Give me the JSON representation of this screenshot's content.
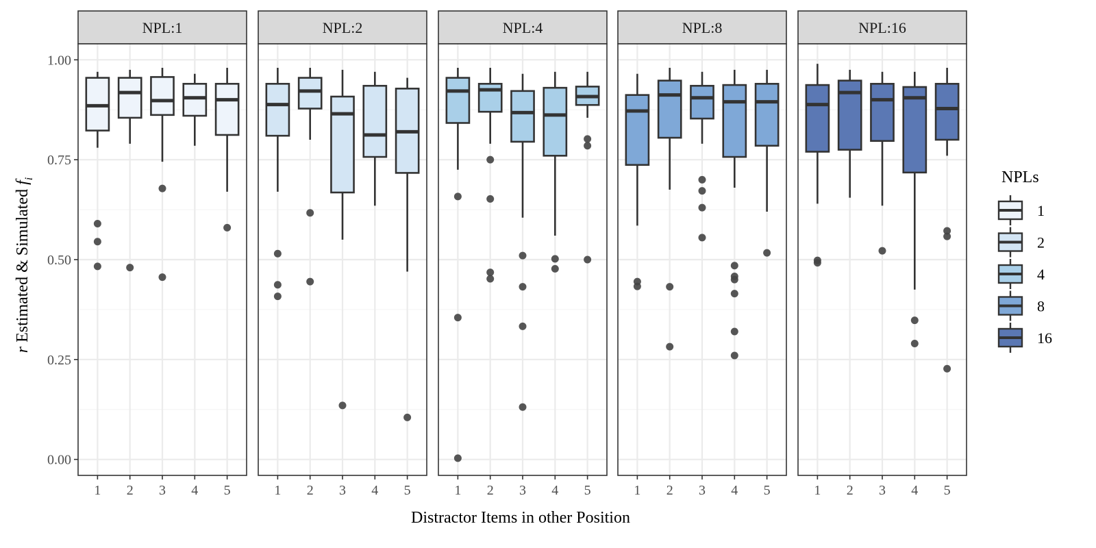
{
  "chart_data": {
    "type": "boxplot",
    "facet_variable": "NPL",
    "facets": [
      {
        "label": "NPL:1",
        "npl": "1",
        "color": "#eef4fb",
        "boxes": [
          {
            "x": "1",
            "lower_whisker": 0.78,
            "q1": 0.823,
            "median": 0.885,
            "q3": 0.955,
            "upper_whisker": 0.97,
            "outliers": [
              0.59,
              0.545,
              0.483
            ]
          },
          {
            "x": "2",
            "lower_whisker": 0.79,
            "q1": 0.855,
            "median": 0.918,
            "q3": 0.955,
            "upper_whisker": 0.975,
            "outliers": [
              0.48
            ]
          },
          {
            "x": "3",
            "lower_whisker": 0.745,
            "q1": 0.862,
            "median": 0.898,
            "q3": 0.957,
            "upper_whisker": 0.98,
            "outliers": [
              0.678,
              0.456
            ]
          },
          {
            "x": "4",
            "lower_whisker": 0.785,
            "q1": 0.86,
            "median": 0.905,
            "q3": 0.94,
            "upper_whisker": 0.965,
            "outliers": []
          },
          {
            "x": "5",
            "lower_whisker": 0.67,
            "q1": 0.812,
            "median": 0.9,
            "q3": 0.94,
            "upper_whisker": 0.98,
            "outliers": [
              0.58
            ]
          }
        ]
      },
      {
        "label": "NPL:2",
        "npl": "2",
        "color": "#d3e5f4",
        "boxes": [
          {
            "x": "1",
            "lower_whisker": 0.67,
            "q1": 0.81,
            "median": 0.888,
            "q3": 0.94,
            "upper_whisker": 0.98,
            "outliers": [
              0.515,
              0.437,
              0.408
            ]
          },
          {
            "x": "2",
            "lower_whisker": 0.8,
            "q1": 0.878,
            "median": 0.922,
            "q3": 0.955,
            "upper_whisker": 0.98,
            "outliers": [
              0.617,
              0.445
            ]
          },
          {
            "x": "3",
            "lower_whisker": 0.55,
            "q1": 0.668,
            "median": 0.865,
            "q3": 0.908,
            "upper_whisker": 0.975,
            "outliers": [
              0.135
            ]
          },
          {
            "x": "4",
            "lower_whisker": 0.635,
            "q1": 0.757,
            "median": 0.812,
            "q3": 0.935,
            "upper_whisker": 0.97,
            "outliers": []
          },
          {
            "x": "5",
            "lower_whisker": 0.47,
            "q1": 0.717,
            "median": 0.82,
            "q3": 0.928,
            "upper_whisker": 0.955,
            "outliers": [
              0.105
            ]
          }
        ]
      },
      {
        "label": "NPL:4",
        "npl": "4",
        "color": "#a9cfe8",
        "boxes": [
          {
            "x": "1",
            "lower_whisker": 0.725,
            "q1": 0.842,
            "median": 0.922,
            "q3": 0.955,
            "upper_whisker": 0.98,
            "outliers": [
              0.658,
              0.355,
              0.003
            ]
          },
          {
            "x": "2",
            "lower_whisker": 0.79,
            "q1": 0.87,
            "median": 0.925,
            "q3": 0.94,
            "upper_whisker": 0.98,
            "outliers": [
              0.75,
              0.652,
              0.468,
              0.452
            ]
          },
          {
            "x": "3",
            "lower_whisker": 0.605,
            "q1": 0.795,
            "median": 0.868,
            "q3": 0.922,
            "upper_whisker": 0.965,
            "outliers": [
              0.51,
              0.432,
              0.333,
              0.131
            ]
          },
          {
            "x": "4",
            "lower_whisker": 0.56,
            "q1": 0.76,
            "median": 0.862,
            "q3": 0.93,
            "upper_whisker": 0.97,
            "outliers": [
              0.502,
              0.477
            ]
          },
          {
            "x": "5",
            "lower_whisker": 0.855,
            "q1": 0.887,
            "median": 0.908,
            "q3": 0.933,
            "upper_whisker": 0.97,
            "outliers": [
              0.802,
              0.785,
              0.5
            ]
          }
        ]
      },
      {
        "label": "NPL:8",
        "npl": "8",
        "color": "#7fa8d7",
        "boxes": [
          {
            "x": "1",
            "lower_whisker": 0.585,
            "q1": 0.737,
            "median": 0.872,
            "q3": 0.912,
            "upper_whisker": 0.965,
            "outliers": [
              0.445,
              0.433
            ]
          },
          {
            "x": "2",
            "lower_whisker": 0.675,
            "q1": 0.805,
            "median": 0.912,
            "q3": 0.948,
            "upper_whisker": 0.98,
            "outliers": [
              0.432,
              0.282
            ]
          },
          {
            "x": "3",
            "lower_whisker": 0.79,
            "q1": 0.853,
            "median": 0.905,
            "q3": 0.935,
            "upper_whisker": 0.97,
            "outliers": [
              0.7,
              0.672,
              0.63,
              0.555
            ]
          },
          {
            "x": "4",
            "lower_whisker": 0.68,
            "q1": 0.757,
            "median": 0.895,
            "q3": 0.937,
            "upper_whisker": 0.975,
            "outliers": [
              0.485,
              0.458,
              0.45,
              0.415,
              0.32,
              0.26
            ]
          },
          {
            "x": "5",
            "lower_whisker": 0.62,
            "q1": 0.785,
            "median": 0.895,
            "q3": 0.94,
            "upper_whisker": 0.975,
            "outliers": [
              0.517
            ]
          }
        ]
      },
      {
        "label": "NPL:16",
        "npl": "16",
        "color": "#5b78b4",
        "boxes": [
          {
            "x": "1",
            "lower_whisker": 0.64,
            "q1": 0.77,
            "median": 0.888,
            "q3": 0.937,
            "upper_whisker": 0.99,
            "outliers": [
              0.498,
              0.492
            ]
          },
          {
            "x": "2",
            "lower_whisker": 0.655,
            "q1": 0.775,
            "median": 0.918,
            "q3": 0.948,
            "upper_whisker": 0.975,
            "outliers": []
          },
          {
            "x": "3",
            "lower_whisker": 0.635,
            "q1": 0.797,
            "median": 0.9,
            "q3": 0.94,
            "upper_whisker": 0.97,
            "outliers": [
              0.522
            ]
          },
          {
            "x": "4",
            "lower_whisker": 0.425,
            "q1": 0.718,
            "median": 0.905,
            "q3": 0.932,
            "upper_whisker": 0.97,
            "outliers": [
              0.348,
              0.29
            ]
          },
          {
            "x": "5",
            "lower_whisker": 0.76,
            "q1": 0.8,
            "median": 0.878,
            "q3": 0.94,
            "upper_whisker": 0.98,
            "outliers": [
              0.572,
              0.558,
              0.227
            ]
          }
        ]
      }
    ],
    "x_categories": [
      "1",
      "2",
      "3",
      "4",
      "5"
    ],
    "ylim": [
      -0.04,
      1.04
    ],
    "yticks": [
      0.0,
      0.25,
      0.5,
      0.75,
      1.0
    ],
    "ytick_labels": [
      "0.00",
      "0.25",
      "0.50",
      "0.75",
      "1.00"
    ],
    "xlabel": "Distractor Items in other Position",
    "ylabel": {
      "prefix": "r",
      "main": " Estimated & Simulated ",
      "var": "f",
      "sub": "i"
    },
    "legend": {
      "title": "NPLs",
      "position": "right",
      "items": [
        {
          "label": "1",
          "color": "#eef4fb"
        },
        {
          "label": "2",
          "color": "#d3e5f4"
        },
        {
          "label": "4",
          "color": "#a9cfe8"
        },
        {
          "label": "8",
          "color": "#7fa8d7"
        },
        {
          "label": "16",
          "color": "#5b78b4"
        }
      ]
    },
    "grid": true
  },
  "colors": {
    "strip_bg": "#d9d9d9",
    "panel_border": "#333333",
    "grid_major": "#ebebeb",
    "grid_minor": "#f5f5f5",
    "outlier": "#444444",
    "box_line": "#333333",
    "axis_text": "#4d4d4d"
  }
}
